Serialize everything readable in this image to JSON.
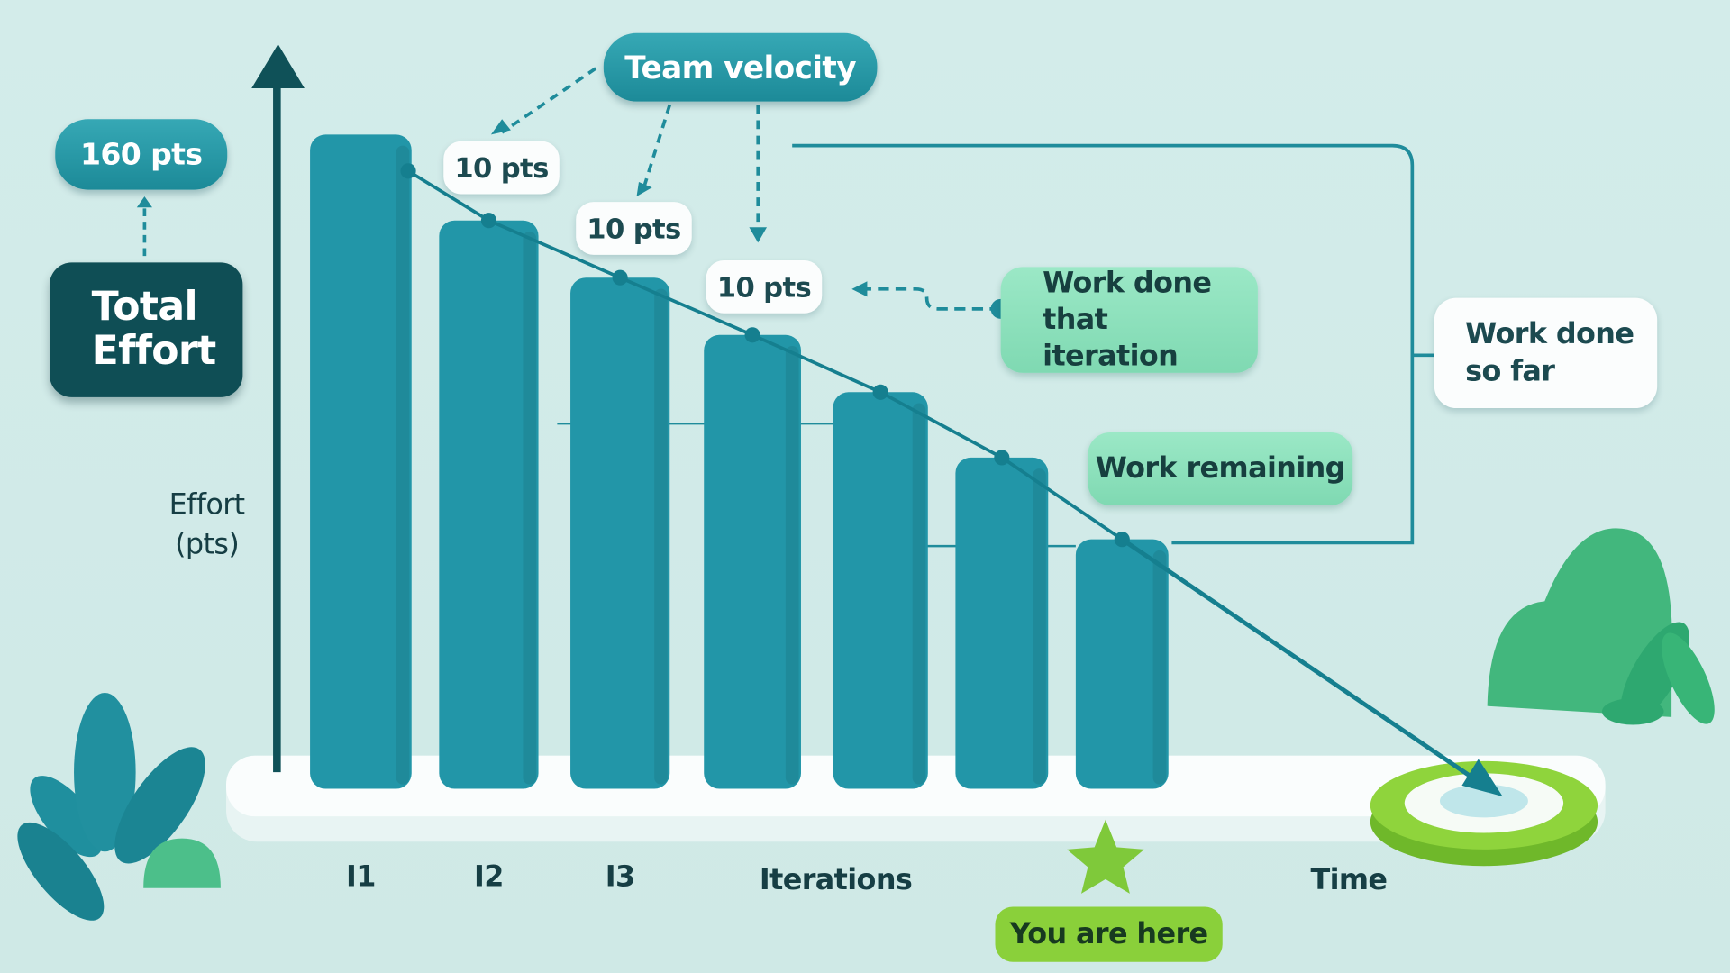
{
  "chart_data": {
    "type": "bar",
    "categories": [
      "I1",
      "I2",
      "I3",
      null,
      null,
      null,
      null
    ],
    "values": [
      160,
      139,
      125,
      111,
      97,
      81,
      61
    ],
    "color": "#2296a8",
    "line_color": "#157f8f",
    "ylim": [
      0,
      160
    ],
    "y_label": "Effort (pts)",
    "x_label": "Iterations",
    "time_label": "Time",
    "annotations": {
      "total_effort": "Total Effort",
      "total_points": "160 pts",
      "team_velocity": "Team velocity",
      "velocity_labels": [
        "10 pts",
        "10 pts",
        "10 pts"
      ],
      "work_done_iteration": "Work done that iteration",
      "work_done_so_far": "Work done so far",
      "work_remaining": "Work remaining",
      "you_are_here": "You are here"
    }
  }
}
